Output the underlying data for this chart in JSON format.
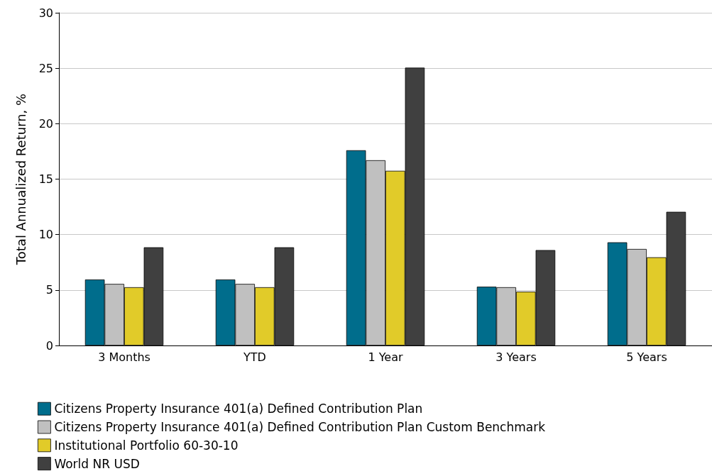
{
  "chart_data": {
    "type": "bar",
    "ylabel": "Total Annualized Return, %",
    "categories": [
      "3 Months",
      "YTD",
      "1 Year",
      "3 Years",
      "5 Years"
    ],
    "series": [
      {
        "name": "Citizens Property Insurance 401(a) Defined Contribution Plan",
        "color": "#006d8c",
        "values": [
          5.95,
          5.95,
          17.6,
          5.3,
          9.3
        ]
      },
      {
        "name": "Citizens Property Insurance 401(a) Defined Contribution Plan Custom Benchmark",
        "color": "#c0c0c0",
        "values": [
          5.55,
          5.55,
          16.7,
          5.25,
          8.7
        ]
      },
      {
        "name": "Institutional Portfolio 60-30-10",
        "color": "#e1cb29",
        "values": [
          5.25,
          5.25,
          15.75,
          4.85,
          7.95
        ]
      },
      {
        "name": "World NR USD",
        "color": "#404040",
        "values": [
          8.85,
          8.85,
          25.05,
          8.6,
          12.05
        ]
      }
    ],
    "ylim": [
      0,
      30
    ],
    "yticks": [
      0,
      5,
      10,
      15,
      20,
      25,
      30
    ],
    "grid": "y",
    "legend": "bottom"
  }
}
